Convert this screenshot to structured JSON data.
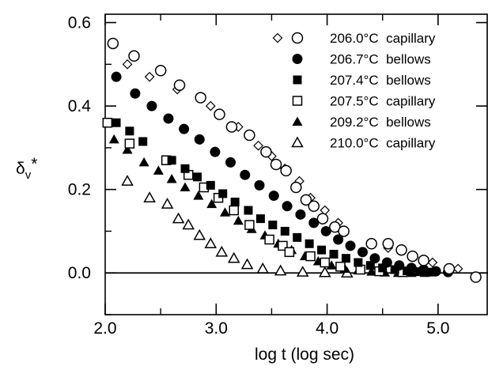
{
  "chart_data": {
    "type": "scatter",
    "title": "",
    "xlabel": "log t  (log sec)",
    "ylabel_main": "δ",
    "ylabel_sub": "v",
    "ylabel_sup": "*",
    "xlim": [
      2.0,
      5.45
    ],
    "ylim": [
      -0.1,
      0.62
    ],
    "x_ticks": [
      "2.0",
      "3.0",
      "4.0",
      "5.0"
    ],
    "y_ticks": [
      "0.0",
      "0.2",
      "0.4",
      "0.6"
    ],
    "grid": false,
    "zero_line": true,
    "legend_position": "top-right",
    "series": [
      {
        "name": "206.0°C  capillary",
        "marker": "open-circle",
        "extra_marker": "open-diamond",
        "points": [
          [
            2.07,
            0.55
          ],
          [
            2.26,
            0.52
          ],
          [
            2.5,
            0.485
          ],
          [
            2.67,
            0.45
          ],
          [
            2.86,
            0.42
          ],
          [
            3.03,
            0.38
          ],
          [
            3.14,
            0.35
          ],
          [
            3.3,
            0.33
          ],
          [
            3.45,
            0.29
          ],
          [
            3.54,
            0.26
          ],
          [
            3.63,
            0.245
          ],
          [
            3.72,
            0.205
          ],
          [
            3.81,
            0.175
          ],
          [
            3.88,
            0.16
          ],
          [
            3.96,
            0.13
          ],
          [
            4.07,
            0.11
          ],
          [
            4.15,
            0.1
          ],
          [
            4.4,
            0.07
          ],
          [
            4.55,
            0.07
          ],
          [
            4.67,
            0.055
          ],
          [
            4.77,
            0.04
          ],
          [
            4.87,
            0.03
          ],
          [
            5.1,
            0.01
          ],
          [
            5.34,
            -0.01
          ]
        ]
      },
      {
        "name": "206.7°C  bellows",
        "marker": "filled-circle",
        "points": [
          [
            2.1,
            0.47
          ],
          [
            2.27,
            0.43
          ],
          [
            2.42,
            0.4
          ],
          [
            2.57,
            0.37
          ],
          [
            2.71,
            0.345
          ],
          [
            2.85,
            0.32
          ],
          [
            2.99,
            0.29
          ],
          [
            3.13,
            0.265
          ],
          [
            3.26,
            0.235
          ],
          [
            3.39,
            0.21
          ],
          [
            3.52,
            0.185
          ],
          [
            3.64,
            0.16
          ],
          [
            3.76,
            0.14
          ],
          [
            3.88,
            0.12
          ],
          [
            3.99,
            0.1
          ],
          [
            4.1,
            0.08
          ],
          [
            4.21,
            0.065
          ],
          [
            4.32,
            0.05
          ],
          [
            4.43,
            0.035
          ],
          [
            4.54,
            0.025
          ],
          [
            4.65,
            0.018
          ],
          [
            4.76,
            0.012
          ],
          [
            4.87,
            0.008
          ],
          [
            4.98,
            0.004
          ],
          [
            5.09,
            0.002
          ]
        ]
      },
      {
        "name": "207.4°C  bellows",
        "marker": "filled-square",
        "points": [
          [
            2.1,
            0.36
          ],
          [
            2.22,
            0.34
          ],
          [
            2.34,
            0.315
          ],
          [
            2.6,
            0.27
          ],
          [
            2.72,
            0.25
          ],
          [
            2.83,
            0.23
          ],
          [
            2.95,
            0.21
          ],
          [
            3.06,
            0.19
          ],
          [
            3.17,
            0.17
          ],
          [
            3.29,
            0.15
          ],
          [
            3.4,
            0.13
          ],
          [
            3.51,
            0.115
          ],
          [
            3.62,
            0.1
          ],
          [
            3.73,
            0.085
          ],
          [
            3.84,
            0.07
          ],
          [
            3.95,
            0.055
          ],
          [
            4.06,
            0.045
          ],
          [
            4.17,
            0.035
          ],
          [
            4.28,
            0.025
          ],
          [
            4.39,
            0.018
          ],
          [
            4.5,
            0.012
          ],
          [
            4.61,
            0.008
          ],
          [
            4.72,
            0.005
          ],
          [
            4.83,
            0.003
          ],
          [
            4.94,
            0.002
          ]
        ]
      },
      {
        "name": "207.5°C  capillary",
        "marker": "open-square",
        "points": [
          [
            2.02,
            0.36
          ],
          [
            2.22,
            0.31
          ],
          [
            2.55,
            0.27
          ],
          [
            2.75,
            0.235
          ],
          [
            2.89,
            0.205
          ],
          [
            3.02,
            0.18
          ],
          [
            3.16,
            0.15
          ],
          [
            3.3,
            0.115
          ],
          [
            3.48,
            0.08
          ],
          [
            3.6,
            0.065
          ],
          [
            3.66,
            0.05
          ],
          [
            3.85,
            0.04
          ],
          [
            3.98,
            0.025
          ],
          [
            4.12,
            0.015
          ],
          [
            4.3,
            0.008
          ],
          [
            4.47,
            0.004
          ],
          [
            4.68,
            0.002
          ]
        ]
      },
      {
        "name": "209.2°C  bellows",
        "marker": "filled-triangle",
        "points": [
          [
            2.08,
            0.32
          ],
          [
            2.2,
            0.295
          ],
          [
            2.35,
            0.265
          ],
          [
            2.48,
            0.245
          ],
          [
            2.6,
            0.225
          ],
          [
            2.72,
            0.205
          ],
          [
            2.84,
            0.185
          ],
          [
            2.96,
            0.165
          ],
          [
            3.08,
            0.145
          ],
          [
            3.2,
            0.125
          ],
          [
            3.32,
            0.105
          ],
          [
            3.44,
            0.09
          ],
          [
            3.56,
            0.07
          ],
          [
            3.68,
            0.055
          ],
          [
            3.8,
            0.04
          ],
          [
            3.92,
            0.028
          ],
          [
            4.04,
            0.018
          ],
          [
            4.16,
            0.01
          ],
          [
            4.28,
            0.006
          ],
          [
            4.4,
            0.003
          ],
          [
            4.52,
            0.001
          ],
          [
            4.64,
            0.0
          ],
          [
            4.76,
            0.0
          ],
          [
            4.88,
            0.0
          ]
        ]
      },
      {
        "name": "210.0°C  capillary",
        "marker": "open-triangle",
        "points": [
          [
            2.2,
            0.22
          ],
          [
            2.4,
            0.18
          ],
          [
            2.56,
            0.165
          ],
          [
            2.66,
            0.13
          ],
          [
            2.75,
            0.115
          ],
          [
            2.85,
            0.09
          ],
          [
            2.95,
            0.07
          ],
          [
            3.05,
            0.05
          ],
          [
            3.16,
            0.035
          ],
          [
            3.28,
            0.02
          ],
          [
            3.42,
            0.01
          ],
          [
            3.58,
            0.005
          ],
          [
            3.78,
            0.002
          ],
          [
            3.98,
            0.001
          ],
          [
            4.18,
            0.0
          ]
        ]
      }
    ],
    "diamond_points": [
      [
        2.2,
        0.5
      ],
      [
        2.4,
        0.47
      ],
      [
        2.65,
        0.44
      ],
      [
        2.95,
        0.4
      ],
      [
        3.2,
        0.35
      ],
      [
        3.38,
        0.305
      ],
      [
        3.5,
        0.28
      ],
      [
        3.62,
        0.25
      ],
      [
        3.75,
        0.22
      ],
      [
        3.85,
        0.18
      ],
      [
        3.98,
        0.15
      ],
      [
        4.1,
        0.12
      ],
      [
        4.55,
        0.06
      ],
      [
        4.95,
        0.025
      ],
      [
        5.18,
        0.01
      ]
    ]
  }
}
